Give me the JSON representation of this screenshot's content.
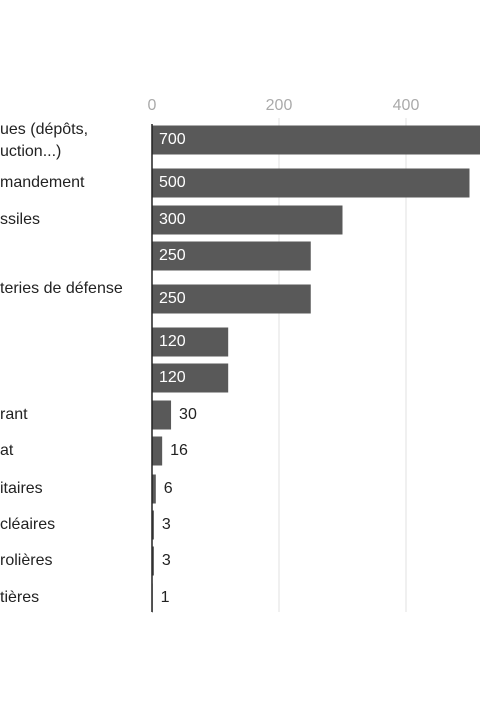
{
  "chart_data": {
    "type": "bar",
    "orientation": "horizontal",
    "categories": [
      [
        "ues (dépôts,",
        "uction...)"
      ],
      "mandement",
      "ssiles",
      null,
      "teries de défense",
      null,
      null,
      "rant",
      "at",
      "itaires",
      "cléaires",
      "rolières",
      "tières"
    ],
    "values": [
      700,
      500,
      300,
      250,
      250,
      120,
      120,
      30,
      16,
      6,
      3,
      3,
      1
    ],
    "color": "#595959",
    "xticks": [
      0,
      200,
      400
    ],
    "grid": true
  }
}
